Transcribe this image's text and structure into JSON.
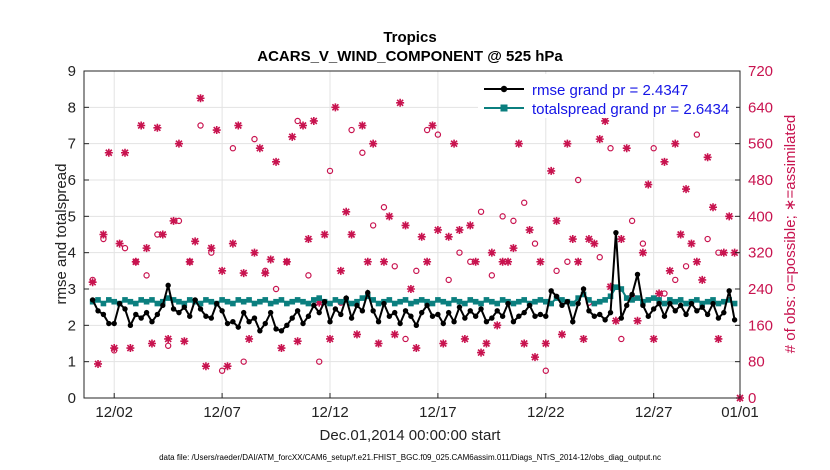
{
  "chart_data": {
    "type": "line",
    "title": "Tropics",
    "subtitle": "ACARS_V_WIND_COMPONENT @ 525 hPa",
    "xlabel": "Dec.01,2014 00:00:00 start",
    "ylabel": "rmse and totalspread",
    "ylabel_right": "# of obs: o=possible; ∗=assimilated",
    "xlim": [
      0.6,
      31.0
    ],
    "ylim": [
      0,
      9
    ],
    "ylim_right": [
      0,
      720
    ],
    "x_ticks": [
      {
        "x": 2,
        "label": "12/02"
      },
      {
        "x": 7,
        "label": "12/07"
      },
      {
        "x": 12,
        "label": "12/12"
      },
      {
        "x": 17,
        "label": "12/17"
      },
      {
        "x": 22,
        "label": "12/22"
      },
      {
        "x": 27,
        "label": "12/27"
      },
      {
        "x": 32,
        "label": "01/01"
      }
    ],
    "y_ticks": [
      "0",
      "1",
      "2",
      "3",
      "4",
      "5",
      "6",
      "7",
      "8",
      "9"
    ],
    "y_ticks_right": [
      "0",
      "80",
      "160",
      "240",
      "320",
      "400",
      "480",
      "560",
      "640",
      "720"
    ],
    "grid": true,
    "legend_position": "top-right",
    "series": [
      {
        "name": "rmse grand pr = 2.4347",
        "color": "#000000",
        "marker": "filled-circle",
        "axis": "left",
        "x": [
          1.0,
          1.25,
          1.5,
          1.75,
          2.0,
          2.25,
          2.5,
          2.75,
          3.0,
          3.25,
          3.5,
          3.75,
          4.0,
          4.25,
          4.5,
          4.75,
          5.0,
          5.25,
          5.5,
          5.75,
          6.0,
          6.25,
          6.5,
          6.75,
          7.0,
          7.25,
          7.5,
          7.75,
          8.0,
          8.25,
          8.5,
          8.75,
          9.0,
          9.25,
          9.5,
          9.75,
          10.0,
          10.25,
          10.5,
          10.75,
          11.0,
          11.25,
          11.5,
          11.75,
          12.0,
          12.25,
          12.5,
          12.75,
          13.0,
          13.25,
          13.5,
          13.75,
          14.0,
          14.25,
          14.5,
          14.75,
          15.0,
          15.25,
          15.5,
          15.75,
          16.0,
          16.25,
          16.5,
          16.75,
          17.0,
          17.25,
          17.5,
          17.75,
          18.0,
          18.25,
          18.5,
          18.75,
          19.0,
          19.25,
          19.5,
          19.75,
          20.0,
          20.25,
          20.5,
          20.75,
          21.0,
          21.25,
          21.5,
          21.75,
          22.0,
          22.25,
          22.5,
          22.75,
          23.0,
          23.25,
          23.5,
          23.75,
          24.0,
          24.25,
          24.5,
          24.75,
          25.0,
          25.25,
          25.5,
          25.75,
          26.0,
          26.25,
          26.5,
          26.75,
          27.0,
          27.25,
          27.5,
          27.75,
          28.0,
          28.25,
          28.5,
          28.75,
          29.0,
          29.25,
          29.5,
          29.75,
          30.0,
          30.25,
          30.5,
          30.75
        ],
        "values": [
          2.7,
          2.4,
          2.3,
          2.05,
          2.05,
          2.6,
          2.45,
          2.0,
          2.3,
          2.2,
          2.35,
          2.1,
          2.3,
          2.55,
          3.1,
          2.45,
          2.35,
          2.5,
          2.25,
          2.7,
          2.45,
          2.25,
          2.2,
          2.6,
          2.4,
          2.05,
          2.1,
          1.95,
          2.35,
          2.1,
          2.2,
          1.85,
          2.05,
          2.35,
          1.9,
          1.85,
          2.0,
          2.2,
          2.4,
          2.05,
          2.25,
          2.55,
          2.35,
          2.65,
          2.1,
          2.45,
          2.3,
          2.75,
          2.2,
          2.55,
          2.4,
          2.9,
          2.4,
          2.1,
          2.6,
          2.25,
          2.35,
          2.05,
          2.4,
          2.25,
          2.0,
          2.35,
          2.55,
          2.25,
          2.3,
          2.05,
          2.35,
          2.1,
          2.5,
          2.2,
          2.4,
          2.25,
          2.45,
          2.1,
          2.2,
          2.4,
          2.25,
          2.6,
          2.1,
          2.25,
          2.35,
          2.55,
          2.25,
          2.3,
          2.25,
          2.95,
          2.8,
          2.55,
          2.65,
          2.1,
          2.6,
          3.0,
          2.4,
          2.25,
          2.3,
          2.15,
          2.35,
          4.55,
          2.2,
          2.55,
          2.85,
          3.4,
          2.55,
          2.25,
          2.45,
          2.6,
          2.25,
          2.6,
          2.4,
          2.55,
          2.3,
          2.6,
          2.4,
          2.5,
          2.3,
          2.6,
          2.2,
          2.35,
          2.95,
          2.15
        ]
      },
      {
        "name": "totalspread grand pr = 2.6434",
        "color": "#0b7f7f",
        "marker": "filled-square",
        "axis": "left",
        "x": [
          1.0,
          1.25,
          1.5,
          1.75,
          2.0,
          2.25,
          2.5,
          2.75,
          3.0,
          3.25,
          3.5,
          3.75,
          4.0,
          4.25,
          4.5,
          4.75,
          5.0,
          5.25,
          5.5,
          5.75,
          6.0,
          6.25,
          6.5,
          6.75,
          7.0,
          7.25,
          7.5,
          7.75,
          8.0,
          8.25,
          8.5,
          8.75,
          9.0,
          9.25,
          9.5,
          9.75,
          10.0,
          10.25,
          10.5,
          10.75,
          11.0,
          11.25,
          11.5,
          11.75,
          12.0,
          12.25,
          12.5,
          12.75,
          13.0,
          13.25,
          13.5,
          13.75,
          14.0,
          14.25,
          14.5,
          14.75,
          15.0,
          15.25,
          15.5,
          15.75,
          16.0,
          16.25,
          16.5,
          16.75,
          17.0,
          17.25,
          17.5,
          17.75,
          18.0,
          18.25,
          18.5,
          18.75,
          19.0,
          19.25,
          19.5,
          19.75,
          20.0,
          20.25,
          20.5,
          20.75,
          21.0,
          21.25,
          21.5,
          21.75,
          22.0,
          22.25,
          22.5,
          22.75,
          23.0,
          23.25,
          23.5,
          23.75,
          24.0,
          24.25,
          24.5,
          24.75,
          25.0,
          25.25,
          25.5,
          25.75,
          26.0,
          26.25,
          26.5,
          26.75,
          27.0,
          27.25,
          27.5,
          27.75,
          28.0,
          28.25,
          28.5,
          28.75,
          29.0,
          29.25,
          29.5,
          29.75,
          30.0,
          30.25,
          30.5,
          30.75
        ],
        "values": [
          2.65,
          2.7,
          2.6,
          2.7,
          2.65,
          2.6,
          2.7,
          2.65,
          2.6,
          2.7,
          2.65,
          2.7,
          2.6,
          2.65,
          2.75,
          2.7,
          2.65,
          2.6,
          2.7,
          2.65,
          2.6,
          2.7,
          2.65,
          2.6,
          2.7,
          2.65,
          2.6,
          2.7,
          2.65,
          2.7,
          2.6,
          2.65,
          2.7,
          2.6,
          2.65,
          2.7,
          2.6,
          2.65,
          2.7,
          2.65,
          2.6,
          2.7,
          2.75,
          2.65,
          2.6,
          2.7,
          2.65,
          2.7,
          2.6,
          2.65,
          2.75,
          2.8,
          2.7,
          2.6,
          2.65,
          2.7,
          2.6,
          2.65,
          2.7,
          2.6,
          2.65,
          2.7,
          2.65,
          2.6,
          2.7,
          2.65,
          2.6,
          2.7,
          2.65,
          2.6,
          2.7,
          2.65,
          2.6,
          2.7,
          2.65,
          2.6,
          2.7,
          2.65,
          2.6,
          2.65,
          2.7,
          2.6,
          2.65,
          2.7,
          2.65,
          2.6,
          2.75,
          2.7,
          2.65,
          2.6,
          2.75,
          2.85,
          2.7,
          2.6,
          2.65,
          2.7,
          2.8,
          3.05,
          3.0,
          2.75,
          2.7,
          2.75,
          2.65,
          2.7,
          2.75,
          2.7,
          2.6,
          2.7,
          2.65,
          2.7,
          2.6,
          2.65,
          2.7,
          2.6,
          2.65,
          2.7,
          2.6,
          2.65,
          2.7,
          2.6
        ]
      },
      {
        "name": "obs possible",
        "color": "#c8134f",
        "marker": "open-circle",
        "axis": "right",
        "x": [
          1.0,
          1.5,
          2.0,
          2.5,
          3.0,
          3.5,
          4.0,
          4.5,
          5.0,
          5.5,
          6.0,
          6.5,
          7.0,
          7.5,
          8.0,
          8.5,
          9.0,
          9.5,
          10.0,
          10.5,
          11.0,
          11.5,
          12.0,
          12.5,
          13.0,
          13.5,
          14.0,
          14.5,
          15.0,
          15.5,
          16.0,
          16.5,
          17.0,
          17.5,
          18.0,
          18.5,
          19.0,
          19.5,
          20.0,
          20.5,
          21.0,
          21.5,
          22.0,
          22.5,
          23.0,
          23.5,
          24.0,
          24.5,
          25.0,
          25.5,
          26.0,
          26.5,
          27.0,
          27.5,
          28.0,
          28.5,
          29.0,
          29.5,
          30.0,
          30.5
        ],
        "values": [
          260,
          350,
          105,
          330,
          300,
          270,
          360,
          115,
          390,
          300,
          600,
          320,
          60,
          550,
          80,
          570,
          280,
          240,
          300,
          610,
          270,
          80,
          500,
          210,
          590,
          540,
          380,
          420,
          290,
          130,
          280,
          590,
          580,
          260,
          320,
          300,
          410,
          270,
          400,
          390,
          430,
          340,
          60,
          280,
          300,
          480,
          210,
          310,
          550,
          130,
          390,
          340,
          550,
          230,
          260,
          290,
          580,
          350,
          320,
          670
        ]
      },
      {
        "name": "obs assimilated",
        "color": "#c8134f",
        "marker": "asterisk",
        "axis": "right",
        "x": [
          1.0,
          1.25,
          1.5,
          1.75,
          2.0,
          2.25,
          2.5,
          2.75,
          3.0,
          3.25,
          3.5,
          3.75,
          4.0,
          4.25,
          4.5,
          4.75,
          5.0,
          5.25,
          5.5,
          5.75,
          6.0,
          6.25,
          6.5,
          6.75,
          7.0,
          7.25,
          7.5,
          7.75,
          8.0,
          8.25,
          8.5,
          8.75,
          9.0,
          9.25,
          9.5,
          9.75,
          10.0,
          10.25,
          10.5,
          10.75,
          11.0,
          11.25,
          11.5,
          11.75,
          12.0,
          12.25,
          12.5,
          12.75,
          13.0,
          13.25,
          13.5,
          13.75,
          14.0,
          14.25,
          14.5,
          14.75,
          15.0,
          15.25,
          15.5,
          15.75,
          16.0,
          16.25,
          16.5,
          16.75,
          17.0,
          17.25,
          17.5,
          17.75,
          18.0,
          18.25,
          18.5,
          18.75,
          19.0,
          19.25,
          19.5,
          19.75,
          20.0,
          20.25,
          20.5,
          20.75,
          21.0,
          21.25,
          21.5,
          21.75,
          22.0,
          22.25,
          22.5,
          22.75,
          23.0,
          23.25,
          23.5,
          23.75,
          24.0,
          24.25,
          24.5,
          24.75,
          25.0,
          25.25,
          25.5,
          25.75,
          26.0,
          26.25,
          26.5,
          26.75,
          27.0,
          27.25,
          27.5,
          27.75,
          28.0,
          28.25,
          28.5,
          28.75,
          29.0,
          29.25,
          29.5,
          29.75,
          30.0,
          30.25,
          30.5,
          30.75,
          31.0
        ],
        "values": [
          255,
          75,
          360,
          540,
          110,
          340,
          540,
          110,
          300,
          600,
          330,
          120,
          595,
          360,
          130,
          390,
          560,
          125,
          300,
          345,
          660,
          70,
          330,
          590,
          280,
          70,
          340,
          600,
          275,
          130,
          320,
          550,
          275,
          305,
          520,
          110,
          300,
          575,
          125,
          600,
          350,
          610,
          210,
          360,
          130,
          640,
          280,
          410,
          360,
          140,
          600,
          300,
          560,
          120,
          300,
          400,
          140,
          650,
          380,
          240,
          110,
          355,
          300,
          600,
          370,
          120,
          355,
          560,
          370,
          130,
          380,
          300,
          100,
          120,
          320,
          160,
          300,
          300,
          330,
          560,
          120,
          370,
          90,
          300,
          120,
          500,
          390,
          140,
          560,
          350,
          300,
          130,
          350,
          340,
          570,
          610,
          245,
          170,
          350,
          550,
          220,
          170,
          320,
          470,
          130,
          230,
          520,
          280,
          560,
          360,
          460,
          340,
          300,
          260,
          530,
          420,
          130,
          320,
          400,
          320,
          0
        ]
      }
    ]
  },
  "footer_text": "data file: /Users/raeder/DAI/ATM_forcXX/CAM6_setup/f.e21.FHIST_BGC.f09_025.CAM6assim.011/Diags_NTrS_2014-12/obs_diag_output.nc"
}
